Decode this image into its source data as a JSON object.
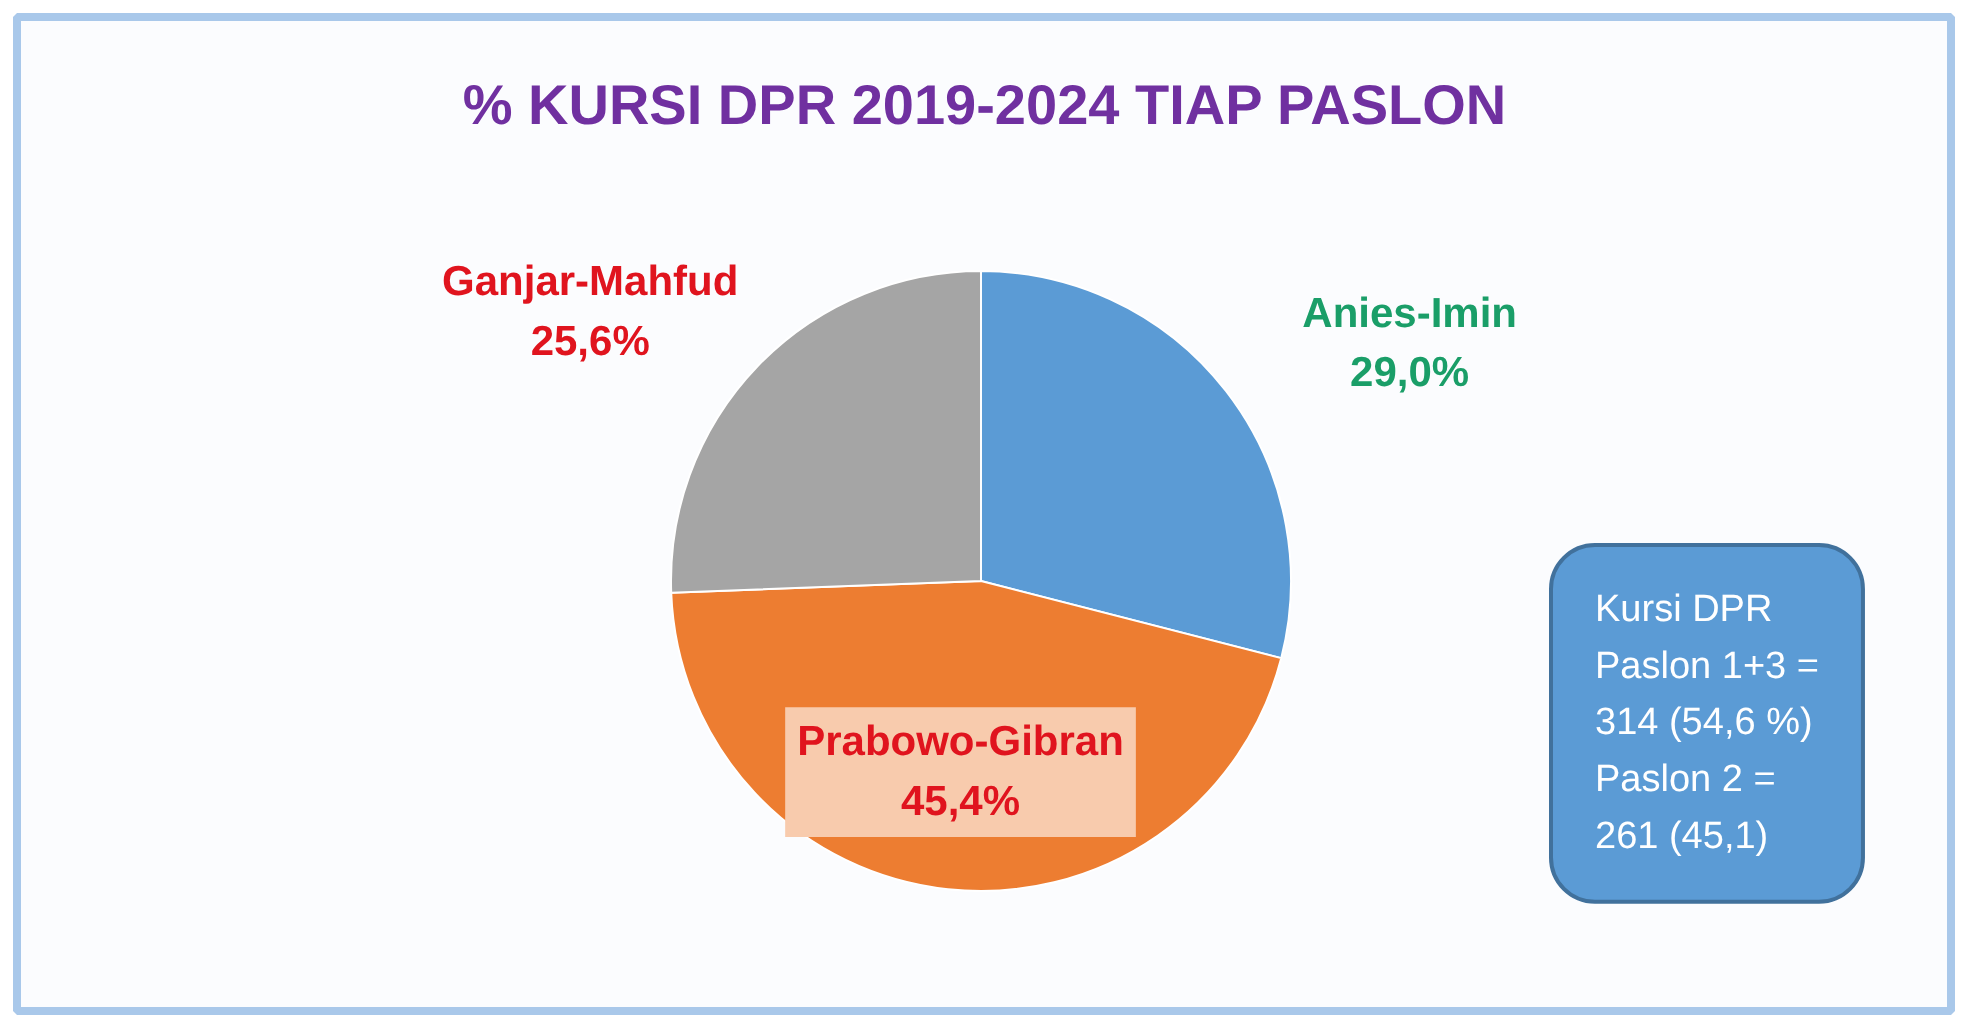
{
  "chart_data": {
    "type": "pie",
    "title": "% KURSI DPR 2019-2024 TIAP PASLON",
    "categories": [
      "Anies-Imin",
      "Prabowo-Gibran",
      "Ganjar-Mahfud"
    ],
    "values": [
      29.0,
      45.4,
      25.6
    ],
    "colors": [
      "#5b9bd5",
      "#ed7d31",
      "#a5a5a5"
    ],
    "value_labels": [
      "29,0%",
      "45,4%",
      "25,6%"
    ],
    "annotations": [
      "Kursi DPR\nPaslon 1+3 =\n314 (54,6 %)\nPaslon 2 =\n261 (45,1)"
    ]
  }
}
